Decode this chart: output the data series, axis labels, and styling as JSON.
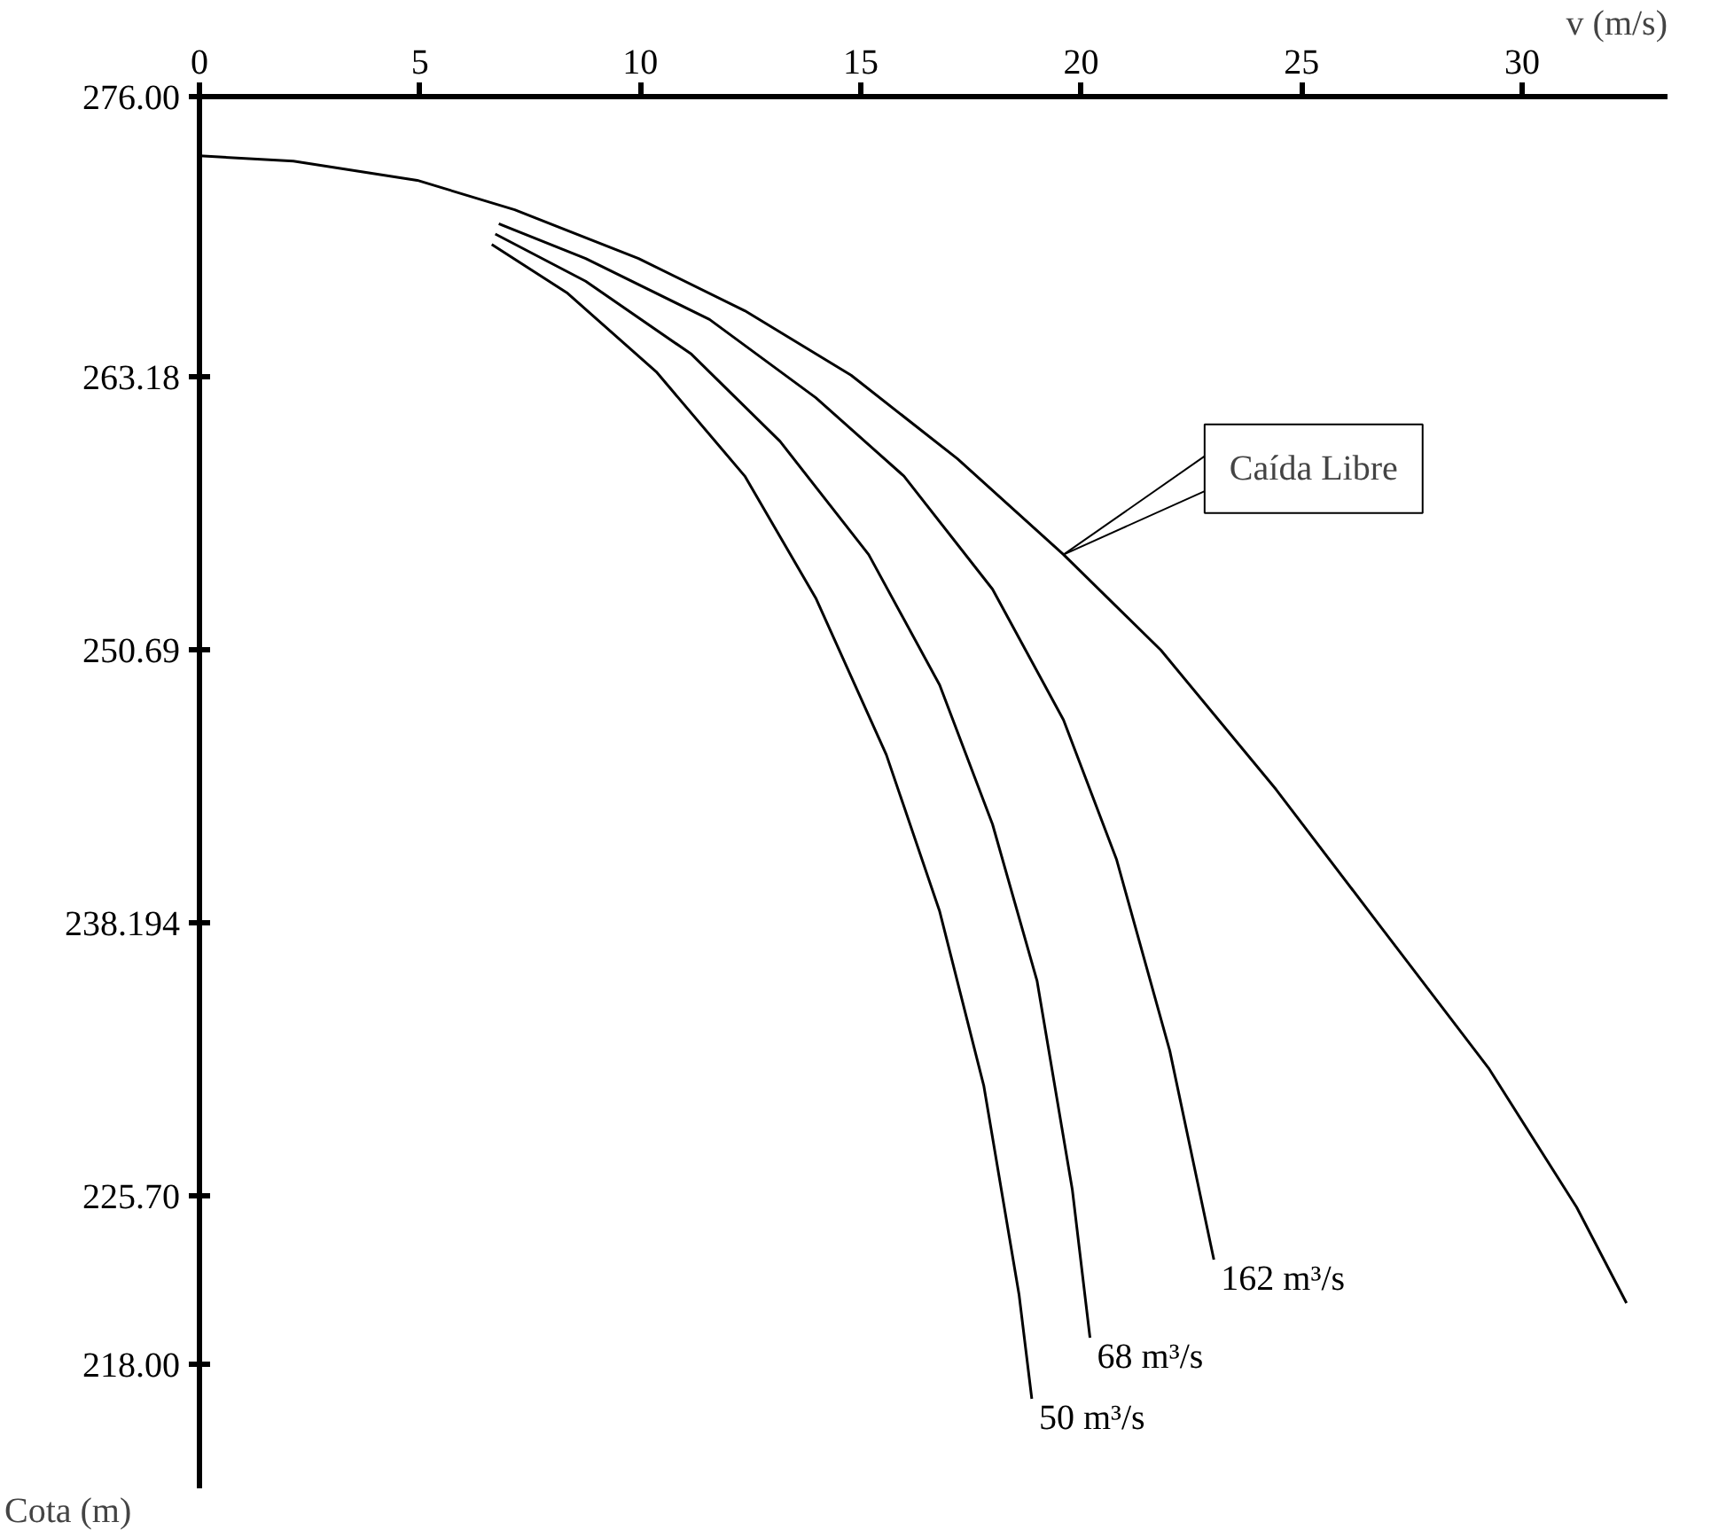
{
  "chart_data": {
    "type": "line",
    "xlabel": "v (m/s)",
    "ylabel": "Cota (m)",
    "xlim": [
      0,
      33.3
    ],
    "ylim": [
      212.3,
      276
    ],
    "xticks": [
      0,
      5,
      10,
      15,
      20,
      25,
      30
    ],
    "yticks": [
      {
        "value": 276,
        "label": "276.00"
      },
      263.18,
      250.69,
      238.194,
      {
        "value": 225.7,
        "label": "225.70"
      },
      {
        "value": 218,
        "label": "218.00"
      }
    ],
    "grid": false,
    "marker": "none",
    "line_style": "solid",
    "series": [
      {
        "color": "#000000",
        "x": [
          0,
          2.13,
          4.94,
          7.15,
          9.96,
          12.37,
          14.78,
          17.19,
          19.6,
          21.81,
          24.42,
          26.83,
          29.24,
          31.24,
          32.37
        ],
        "values": [
          273.29,
          273.05,
          272.17,
          270.82,
          268.59,
          266.2,
          263.25,
          259.43,
          255.04,
          250.66,
          244.29,
          237.91,
          231.54,
          225.16,
          220.78
        ]
      },
      {
        "name": "162 m³/s",
        "color": "#000000",
        "x": [
          6.79,
          8.76,
          11.57,
          13.98,
          15.98,
          17.99,
          19.6,
          20.8,
          22.01,
          23.01
        ],
        "values": [
          270.18,
          268.59,
          265.8,
          262.22,
          258.63,
          253.45,
          247.47,
          241.1,
          232.33,
          222.77
        ]
      },
      {
        "name": "68 m³/s",
        "color": "#000000",
        "x": [
          6.71,
          8.76,
          11.16,
          13.17,
          15.18,
          16.79,
          17.99,
          19.0,
          19.8,
          20.2
        ],
        "values": [
          269.71,
          267.55,
          264.21,
          260.22,
          255.04,
          249.07,
          242.69,
          235.52,
          225.96,
          219.19
        ]
      },
      {
        "name": "50 m³/s",
        "color": "#000000",
        "x": [
          6.63,
          8.35,
          10.36,
          12.37,
          13.98,
          15.58,
          16.79,
          17.79,
          18.59,
          18.88
        ],
        "values": [
          269.23,
          267.0,
          263.41,
          258.63,
          253.05,
          245.88,
          238.71,
          230.74,
          221.18,
          216.4
        ]
      }
    ],
    "annotations": [
      {
        "text": "Caída Libre",
        "x": 19.6,
        "y": 255.04
      }
    ]
  }
}
